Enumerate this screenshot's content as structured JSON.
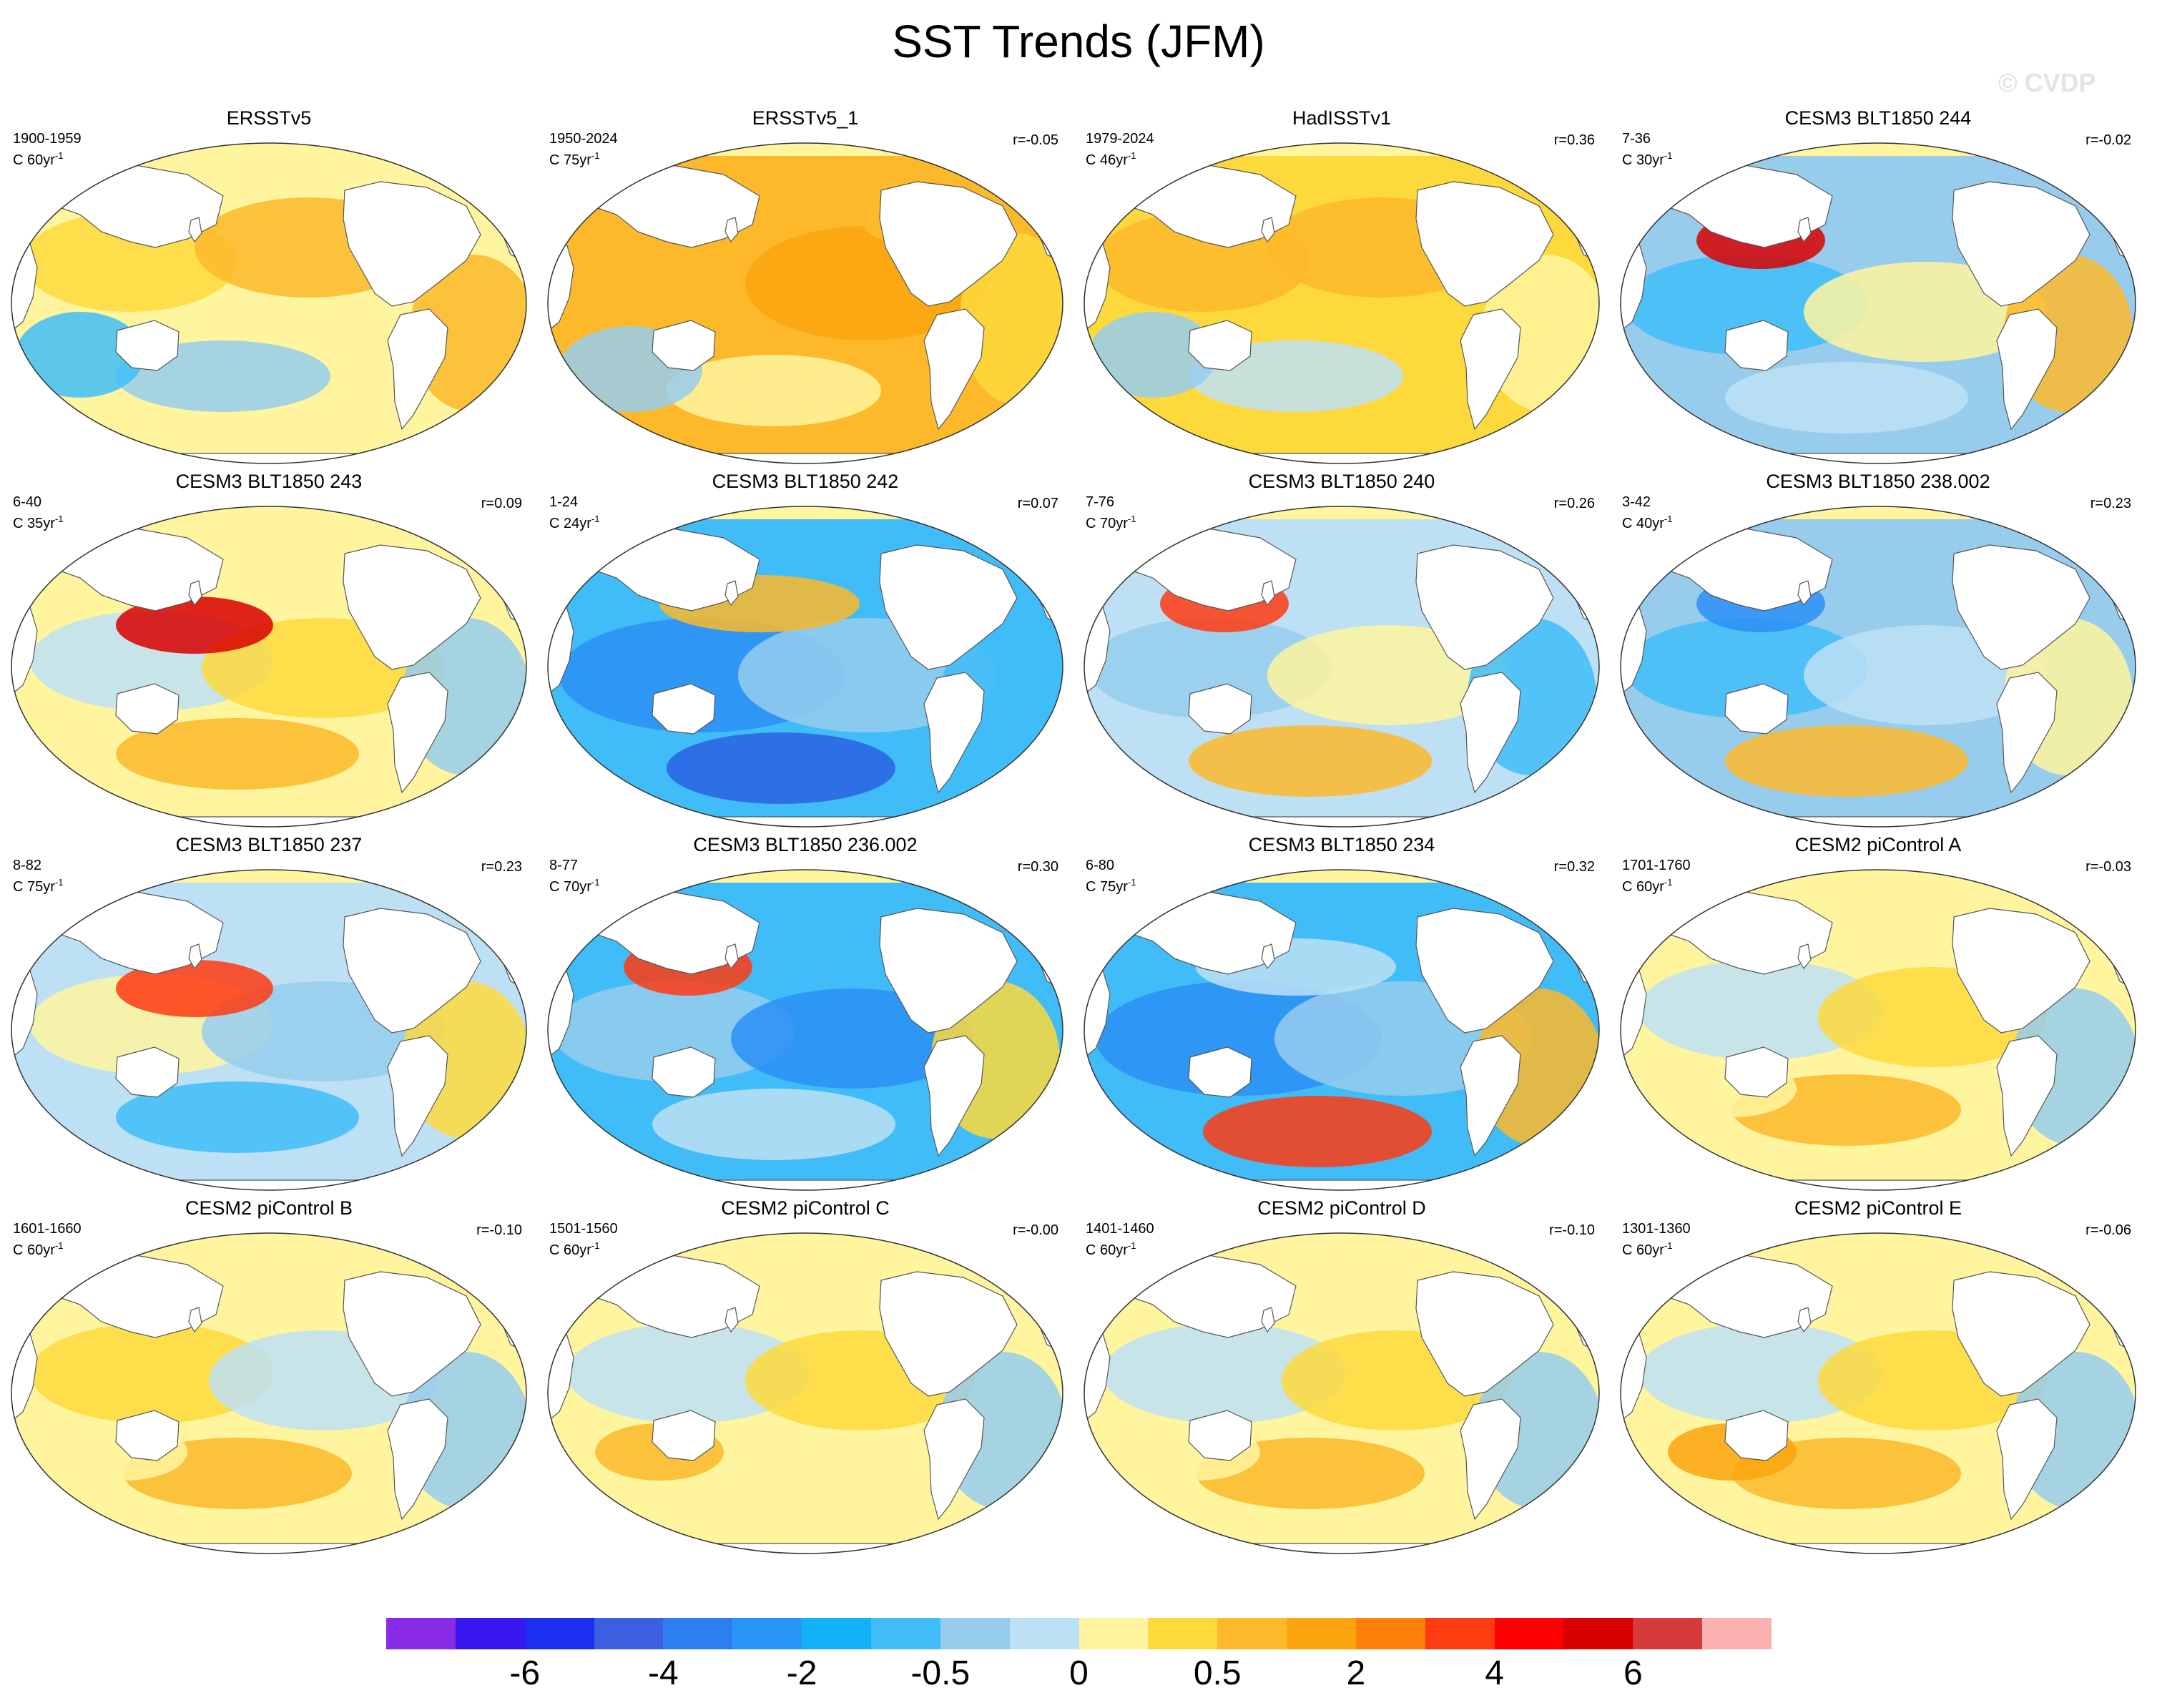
{
  "title": "SST Trends (JFM)",
  "watermark": "© CVDP",
  "panels": [
    {
      "title": "ERSSTv5",
      "period": "1900-1959",
      "scale": "C 60yr",
      "scale_exp": "-1",
      "corr": "",
      "pattern": "warm",
      "colors": [
        "#fff59e",
        "#fed93c",
        "#fdb92a",
        "#fdb92a",
        "#97cced",
        "#40bdf8"
      ]
    },
    {
      "title": "ERSSTv5_1",
      "period": "1950-2024",
      "scale": "C 75yr",
      "scale_exp": "-1",
      "corr": "r=-0.05",
      "pattern": "strongwarm",
      "colors": [
        "#fdb92a",
        "#fdb92a",
        "#fca40f",
        "#fed93c",
        "#fff59e",
        "#97cced"
      ]
    },
    {
      "title": "HadISSTv1",
      "period": "1979-2024",
      "scale": "C 46yr",
      "scale_exp": "-1",
      "corr": "r=0.36",
      "pattern": "warm",
      "colors": [
        "#fed93c",
        "#fdb92a",
        "#fdb92a",
        "#fff59e",
        "#bde0f5",
        "#97cced"
      ]
    },
    {
      "title": "CESM3 BLT1850 244",
      "period": "7-36",
      "scale": "C 30yr",
      "scale_exp": "-1",
      "corr": "r=-0.02",
      "pattern": "cool",
      "colors": [
        "#97cced",
        "#40bdf8",
        "#fff59e",
        "#fdb92a",
        "#bde0f5",
        "#d90000"
      ]
    },
    {
      "title": "CESM3 BLT1850 243",
      "period": "6-40",
      "scale": "C 35yr",
      "scale_exp": "-1",
      "corr": "r=0.09",
      "pattern": "mixed",
      "colors": [
        "#fff59e",
        "#bde0f5",
        "#fed93c",
        "#97cced",
        "#fdb92a",
        "#d90000"
      ]
    },
    {
      "title": "CESM3 BLT1850 242",
      "period": "1-24",
      "scale": "C 24yr",
      "scale_exp": "-1",
      "corr": "r=0.07",
      "pattern": "strongcool",
      "colors": [
        "#40bdf8",
        "#2c8ff5",
        "#97cced",
        "#40bdf8",
        "#fdb92a",
        "#2a62e0"
      ]
    },
    {
      "title": "CESM3 BLT1850 240",
      "period": "7-76",
      "scale": "C 70yr",
      "scale_exp": "-1",
      "corr": "r=0.26",
      "pattern": "cool",
      "colors": [
        "#bde0f5",
        "#97cced",
        "#fff59e",
        "#40bdf8",
        "#fdb92a",
        "#ff3b12"
      ]
    },
    {
      "title": "CESM3 BLT1850 238.002",
      "period": "3-42",
      "scale": "C 40yr",
      "scale_exp": "-1",
      "corr": "r=0.23",
      "pattern": "cool",
      "colors": [
        "#97cced",
        "#40bdf8",
        "#bde0f5",
        "#fff59e",
        "#fdb92a",
        "#2c8ff5"
      ]
    },
    {
      "title": "CESM3 BLT1850 237",
      "period": "8-82",
      "scale": "C 75yr",
      "scale_exp": "-1",
      "corr": "r=0.23",
      "pattern": "mixed",
      "colors": [
        "#bde0f5",
        "#fff59e",
        "#97cced",
        "#fed93c",
        "#40bdf8",
        "#ff3b12"
      ]
    },
    {
      "title": "CESM3 BLT1850 236.002",
      "period": "8-77",
      "scale": "C 70yr",
      "scale_exp": "-1",
      "corr": "r=0.30",
      "pattern": "cool",
      "colors": [
        "#40bdf8",
        "#97cced",
        "#2c8ff5",
        "#fed93c",
        "#bde0f5",
        "#ff3b12"
      ]
    },
    {
      "title": "CESM3 BLT1850 234",
      "period": "6-80",
      "scale": "C 75yr",
      "scale_exp": "-1",
      "corr": "r=0.32",
      "pattern": "strongcool",
      "colors": [
        "#40bdf8",
        "#2c8ff5",
        "#97cced",
        "#fdb92a",
        "#bde0f5",
        "#ff3b12"
      ]
    },
    {
      "title": "CESM2 piControl A",
      "period": "1701-1760",
      "scale": "C 60yr",
      "scale_exp": "-1",
      "corr": "r=-0.03",
      "pattern": "pale",
      "colors": [
        "#fff59e",
        "#bde0f5",
        "#fed93c",
        "#97cced",
        "#fdb92a",
        "#fff59e"
      ]
    },
    {
      "title": "CESM2 piControl B",
      "period": "1601-1660",
      "scale": "C 60yr",
      "scale_exp": "-1",
      "corr": "r=-0.10",
      "pattern": "pale",
      "colors": [
        "#fff59e",
        "#fed93c",
        "#bde0f5",
        "#97cced",
        "#fdb92a",
        "#fff59e"
      ]
    },
    {
      "title": "CESM2 piControl C",
      "period": "1501-1560",
      "scale": "C 60yr",
      "scale_exp": "-1",
      "corr": "r=-0.00",
      "pattern": "pale",
      "colors": [
        "#fff59e",
        "#bde0f5",
        "#fed93c",
        "#97cced",
        "#fff59e",
        "#fdb92a"
      ]
    },
    {
      "title": "CESM2 piControl D",
      "period": "1401-1460",
      "scale": "C 60yr",
      "scale_exp": "-1",
      "corr": "r=-0.10",
      "pattern": "pale",
      "colors": [
        "#fff59e",
        "#bde0f5",
        "#fed93c",
        "#97cced",
        "#fdb92a",
        "#fff59e"
      ]
    },
    {
      "title": "CESM2 piControl E",
      "period": "1301-1360",
      "scale": "C 60yr",
      "scale_exp": "-1",
      "corr": "r=-0.06",
      "pattern": "pale",
      "colors": [
        "#fff59e",
        "#bde0f5",
        "#fed93c",
        "#97cced",
        "#fdb92a",
        "#fca40f"
      ]
    }
  ],
  "colorbar": {
    "colors": [
      "#8a2be8",
      "#3a17f0",
      "#1c2ef0",
      "#3c5ee0",
      "#2c7ff0",
      "#2a95f8",
      "#12b2f8",
      "#40bdf8",
      "#97cced",
      "#bde0f5",
      "#fff59e",
      "#fed93c",
      "#fdb92a",
      "#fca40f",
      "#fd800a",
      "#ff3b12",
      "#ff0000",
      "#d90000",
      "#d63b3b",
      "#fdb2b2"
    ],
    "labels": [
      "-6",
      "-4",
      "-2",
      "-0.5",
      "0",
      "0.5",
      "2",
      "4",
      "6"
    ],
    "label_boundaries": [
      2,
      4,
      6,
      8,
      10,
      12,
      14,
      16,
      18
    ]
  }
}
